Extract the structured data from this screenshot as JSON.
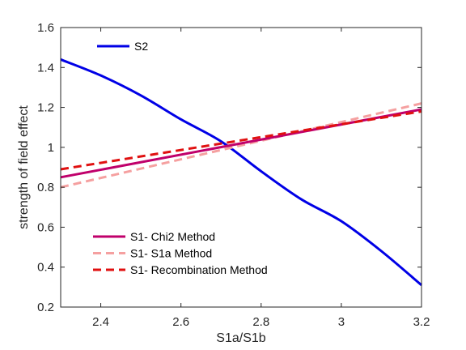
{
  "chart_data": {
    "type": "line",
    "xlabel": "S1a/S1b",
    "ylabel": "strength of field effect",
    "xlim": [
      2.3,
      3.2
    ],
    "ylim": [
      0.2,
      1.6
    ],
    "xticks": [
      2.4,
      2.6,
      2.8,
      3,
      3.2
    ],
    "yticks": [
      0.2,
      0.4,
      0.6,
      0.8,
      1,
      1.2,
      1.4,
      1.6
    ],
    "grid": false,
    "legends": [
      {
        "placement": "top-left",
        "entries": [
          "S2"
        ]
      },
      {
        "placement": "bottom-left",
        "entries": [
          "S1- Chi2 Method",
          "S1- S1a Method",
          "S1- Recombination Method"
        ]
      }
    ],
    "series": [
      {
        "name": "S2",
        "color": "#0000e6",
        "style": "solid",
        "x": [
          2.3,
          2.4,
          2.5,
          2.6,
          2.7,
          2.8,
          2.9,
          3.0,
          3.1,
          3.2
        ],
        "y": [
          1.44,
          1.36,
          1.26,
          1.14,
          1.03,
          0.88,
          0.74,
          0.63,
          0.48,
          0.31
        ]
      },
      {
        "name": "S1- Chi2 Method",
        "color": "#c0006b",
        "style": "solid",
        "x": [
          2.3,
          3.2
        ],
        "y": [
          0.85,
          1.19
        ]
      },
      {
        "name": "S1- S1a Method",
        "color": "#f5a0a0",
        "style": "dashed",
        "x": [
          2.3,
          3.2
        ],
        "y": [
          0.8,
          1.22
        ]
      },
      {
        "name": "S1- Recombination Method",
        "color": "#e01010",
        "style": "dashed",
        "x": [
          2.3,
          3.2
        ],
        "y": [
          0.89,
          1.18
        ]
      }
    ]
  }
}
